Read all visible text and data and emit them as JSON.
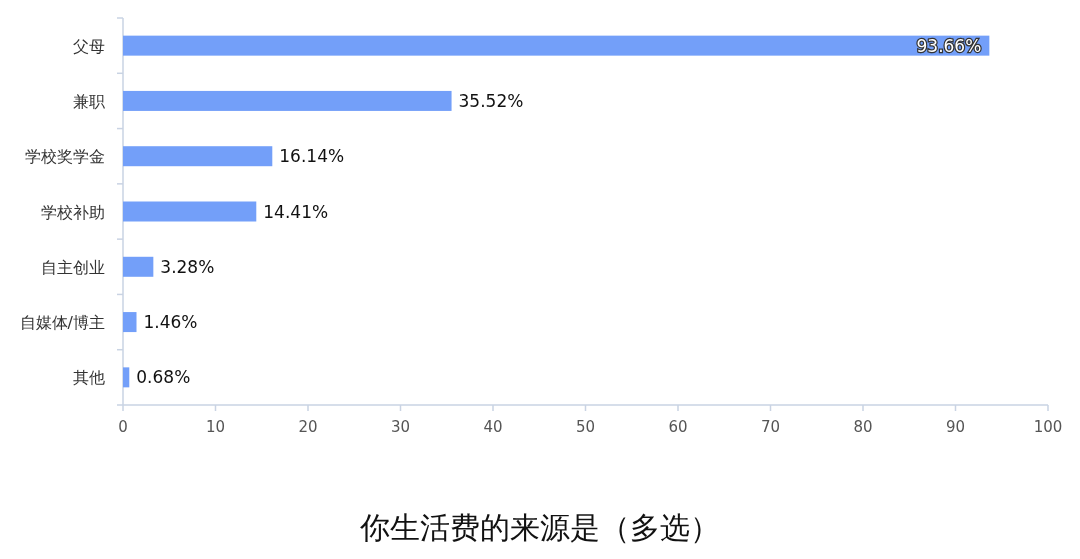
{
  "chart_data": {
    "type": "bar",
    "orientation": "horizontal",
    "title": "你生活费的来源是（多选）",
    "categories": [
      "父母",
      "兼职",
      "学校奖学金",
      "学校补助",
      "自主创业",
      "自媒体/博主",
      "其他"
    ],
    "values": [
      93.66,
      35.52,
      16.14,
      14.41,
      3.28,
      1.46,
      0.68
    ],
    "value_labels": [
      "93.66%",
      "35.52%",
      "16.14%",
      "14.41%",
      "3.28%",
      "1.46%",
      "0.68%"
    ],
    "color": "#739ff9",
    "xlim": [
      0,
      100
    ],
    "xticks": [
      0,
      10,
      20,
      30,
      40,
      50,
      60,
      70,
      80,
      90,
      100
    ]
  }
}
